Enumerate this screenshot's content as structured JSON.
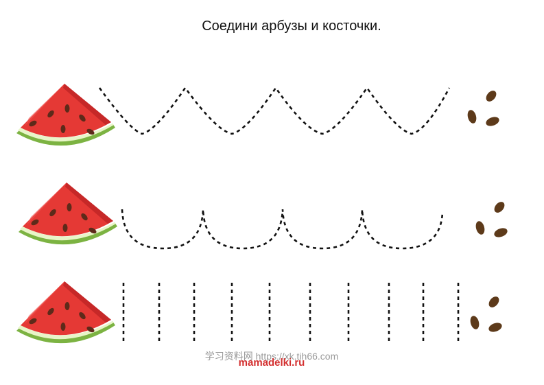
{
  "header": {
    "title": "Соедини арбузы и косточки."
  },
  "footer": {
    "watermark": "学习资料网 https://xk.tih66.com",
    "site": "mamadelki.ru"
  }
}
